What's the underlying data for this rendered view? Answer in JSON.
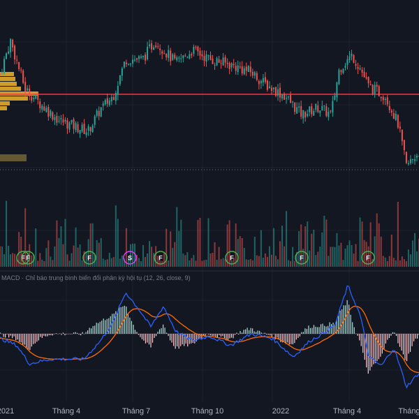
{
  "colors": {
    "background": "#131722",
    "grid": "#1e222d",
    "candle_up": "#26a69a",
    "candle_down": "#ef5350",
    "volume_up": "#26a69a",
    "volume_down": "#ef5350",
    "level_line": "#f23645",
    "dotted_line": "#787b86",
    "volume_profile": "#f0b429",
    "macd_line": "#2962ff",
    "signal_line": "#ff6d00",
    "hist_pos": "#b2dfdb",
    "hist_neg": "#ffcdd2",
    "marker_f": "#4caf50",
    "marker_s": "#e040fb"
  },
  "macd_title": "MACD · Chỉ báo trung bình biến đổi phân kỳ hội tụ (12, 26, close, 9)",
  "chart_data": {
    "type": "candlestick",
    "x_ticks": [
      "2021",
      "Tháng 4",
      "Tháng 7",
      "Tháng 10",
      "2022",
      "Tháng 4",
      "Tháng"
    ],
    "markers": [
      {
        "label": "F",
        "type": "F"
      },
      {
        "label": "F",
        "type": "F"
      },
      {
        "label": "F",
        "type": "F"
      },
      {
        "label": "S",
        "type": "S"
      },
      {
        "label": "F",
        "type": "F"
      },
      {
        "label": "F",
        "type": "F"
      },
      {
        "label": "F",
        "type": "F"
      },
      {
        "label": "F",
        "type": "F"
      }
    ],
    "price_trend": [
      {
        "t": 0,
        "v": 62
      },
      {
        "t": 0.025,
        "v": 80
      },
      {
        "t": 0.06,
        "v": 54
      },
      {
        "t": 0.1,
        "v": 45
      },
      {
        "t": 0.14,
        "v": 37
      },
      {
        "t": 0.21,
        "v": 31
      },
      {
        "t": 0.24,
        "v": 43
      },
      {
        "t": 0.27,
        "v": 50
      },
      {
        "t": 0.3,
        "v": 70
      },
      {
        "t": 0.34,
        "v": 70
      },
      {
        "t": 0.37,
        "v": 80
      },
      {
        "t": 0.42,
        "v": 68
      },
      {
        "t": 0.46,
        "v": 75
      },
      {
        "t": 0.5,
        "v": 70
      },
      {
        "t": 0.55,
        "v": 67
      },
      {
        "t": 0.6,
        "v": 63
      },
      {
        "t": 0.63,
        "v": 57
      },
      {
        "t": 0.68,
        "v": 50
      },
      {
        "t": 0.72,
        "v": 40
      },
      {
        "t": 0.76,
        "v": 44
      },
      {
        "t": 0.79,
        "v": 40
      },
      {
        "t": 0.81,
        "v": 65
      },
      {
        "t": 0.84,
        "v": 72
      },
      {
        "t": 0.86,
        "v": 65
      },
      {
        "t": 0.88,
        "v": 55
      },
      {
        "t": 0.92,
        "v": 50
      },
      {
        "t": 0.95,
        "v": 35
      },
      {
        "t": 0.97,
        "v": 12
      },
      {
        "t": 1.0,
        "v": 20
      }
    ],
    "macd_trend": [
      {
        "t": 0,
        "v": -0.2
      },
      {
        "t": 0.04,
        "v": -0.5
      },
      {
        "t": 0.07,
        "v": -1.3
      },
      {
        "t": 0.12,
        "v": -1.1
      },
      {
        "t": 0.2,
        "v": -1.1
      },
      {
        "t": 0.24,
        "v": -0.3
      },
      {
        "t": 0.27,
        "v": 0.5
      },
      {
        "t": 0.3,
        "v": 1.8
      },
      {
        "t": 0.33,
        "v": 1.1
      },
      {
        "t": 0.36,
        "v": 0.3
      },
      {
        "t": 0.39,
        "v": 1.2
      },
      {
        "t": 0.42,
        "v": 0.1
      },
      {
        "t": 0.46,
        "v": -0.3
      },
      {
        "t": 0.5,
        "v": -0.1
      },
      {
        "t": 0.55,
        "v": -0.5
      },
      {
        "t": 0.6,
        "v": 0.0
      },
      {
        "t": 0.65,
        "v": -0.2
      },
      {
        "t": 0.7,
        "v": -1.0
      },
      {
        "t": 0.74,
        "v": -0.3
      },
      {
        "t": 0.77,
        "v": 0.0
      },
      {
        "t": 0.8,
        "v": 0.4
      },
      {
        "t": 0.83,
        "v": 2.1
      },
      {
        "t": 0.86,
        "v": 0.8
      },
      {
        "t": 0.88,
        "v": -1.0
      },
      {
        "t": 0.91,
        "v": -1.4
      },
      {
        "t": 0.94,
        "v": -0.6
      },
      {
        "t": 0.97,
        "v": -2.3
      },
      {
        "t": 1.0,
        "v": -1.7
      }
    ]
  }
}
